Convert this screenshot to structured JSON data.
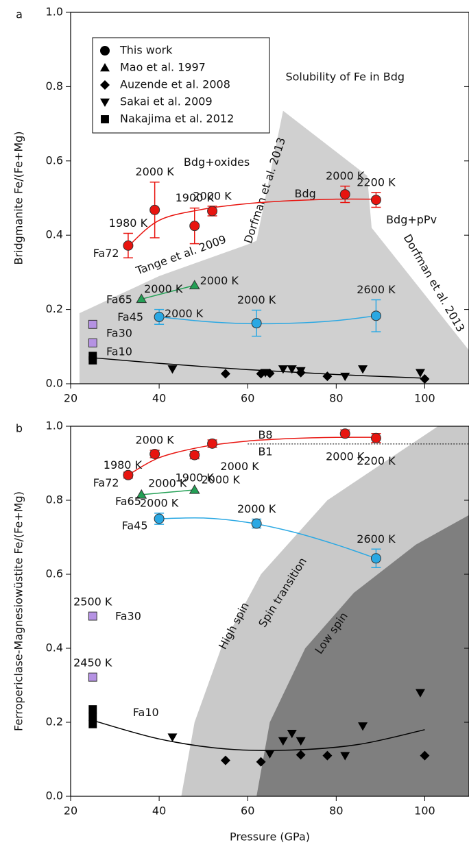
{
  "chart_data": [
    {
      "type": "scatter",
      "panel_label": "a",
      "ylabel": "Bridgmanite Fe/(Fe+Mg)",
      "xlim": [
        20,
        110
      ],
      "ylim": [
        0,
        1
      ],
      "xticks": [
        20,
        40,
        60,
        80,
        100
      ],
      "yticks": [
        {
          "value": 0,
          "label": "0.0"
        },
        0.2,
        0.4,
        0.6,
        0.8,
        {
          "value": 1,
          "label": "1.0"
        }
      ],
      "legend": [
        {
          "name": "This work",
          "marker": "circle"
        },
        {
          "name": "Mao et al. 1997",
          "marker": "triangle"
        },
        {
          "name": "Auzende et al. 2008",
          "marker": "diamond"
        },
        {
          "name": "Sakai et al. 2009",
          "marker": "triangle-down"
        },
        {
          "name": "Nakajima et al. 2012",
          "marker": "square"
        }
      ],
      "regions": [
        {
          "color": "#d0d0d0",
          "x": [
            22,
            22,
            40,
            60,
            62,
            68,
            87,
            88,
            110,
            110
          ],
          "y": [
            0,
            0.19,
            0.29,
            0.375,
            0.385,
            0.735,
            0.56,
            0.42,
            0.09,
            0
          ]
        }
      ],
      "annotations": [
        "Solubility of Fe in Bdg",
        "Bdg+oxides",
        "Bdg",
        "Bdg+pPv",
        "Tange et al. 2009",
        "Dorfman et al. 2013",
        "Dorfman et al. 2013"
      ],
      "series": [
        {
          "name": "Fa72",
          "color": "#e8140f",
          "marker": "circle",
          "x": [
            33,
            39,
            48,
            52,
            82,
            89
          ],
          "values": [
            0.372,
            0.468,
            0.425,
            0.465,
            0.51,
            0.495
          ],
          "errors": [
            0.033,
            0.075,
            0.048,
            0.013,
            0.022,
            0.02
          ],
          "point_labels": [
            "1980 K",
            "2000 K",
            "1900 K",
            "2000 K",
            "2000 K",
            "2200 K"
          ],
          "fit_x": [
            33,
            40,
            50,
            60,
            70,
            80,
            89
          ],
          "fit_y": [
            0.37,
            0.44,
            0.47,
            0.485,
            0.493,
            0.497,
            0.497
          ]
        },
        {
          "name": "Fa65",
          "color": "#23a055",
          "marker": "triangle",
          "x": [
            36,
            48
          ],
          "values": [
            0.228,
            0.265
          ],
          "point_labels": [
            "2000 K",
            "2000 K"
          ],
          "fit_x": [
            36,
            48
          ],
          "fit_y": [
            0.228,
            0.265
          ]
        },
        {
          "name": "Fa45",
          "color": "#2aa8e3",
          "marker": "circle",
          "x": [
            40,
            62,
            89
          ],
          "values": [
            0.18,
            0.163,
            0.183
          ],
          "errors": [
            0.02,
            0.035,
            0.043
          ],
          "point_labels": [
            "2000 K",
            "2000 K",
            "2600 K"
          ],
          "fit_x": [
            40,
            50,
            60,
            70,
            80,
            89
          ],
          "fit_y": [
            0.18,
            0.168,
            0.162,
            0.163,
            0.17,
            0.183
          ]
        },
        {
          "name": "Fa30",
          "color": "#b592e3",
          "marker": "square",
          "x": [
            25,
            25
          ],
          "values": [
            0.16,
            0.11
          ]
        },
        {
          "name": "Fa10",
          "color": "#000000",
          "marker": "square",
          "x": [
            25,
            25
          ],
          "values": [
            0.075,
            0.063
          ],
          "fit_x": [
            25,
            40,
            60,
            80,
            100
          ],
          "fit_y": [
            0.07,
            0.055,
            0.038,
            0.025,
            0.015
          ]
        },
        {
          "color": "#000000",
          "marker": "triangle-down",
          "x": [
            43,
            64,
            68,
            70,
            72,
            82,
            86,
            99
          ],
          "values": [
            0.04,
            0.03,
            0.04,
            0.04,
            0.035,
            0.02,
            0.04,
            0.03
          ]
        },
        {
          "color": "#000000",
          "marker": "diamond",
          "x": [
            55,
            63,
            65,
            72,
            78,
            100
          ],
          "values": [
            0.027,
            0.027,
            0.028,
            0.03,
            0.02,
            0.013
          ]
        }
      ]
    },
    {
      "type": "scatter",
      "panel_label": "b",
      "ylabel": "Ferropericlase-Magnesiowüstite Fe/(Fe+Mg)",
      "xlabel": "Pressure (GPa)",
      "xlim": [
        20,
        110
      ],
      "ylim": [
        0,
        1
      ],
      "xticks": [
        20,
        40,
        60,
        80,
        100
      ],
      "yticks": [
        {
          "value": 0,
          "label": "0.0"
        },
        0.2,
        0.4,
        0.6,
        0.8,
        {
          "value": 1,
          "label": "1.0"
        }
      ],
      "regions": [
        {
          "color": "#c9c9c9",
          "x": [
            45,
            48,
            54,
            63,
            78,
            103,
            110,
            110
          ],
          "y": [
            0,
            0.2,
            0.4,
            0.6,
            0.8,
            1,
            1,
            0
          ]
        },
        {
          "color": "#7f7f7f",
          "x": [
            62,
            65,
            73,
            84,
            98,
            110,
            110
          ],
          "y": [
            0,
            0.2,
            0.4,
            0.55,
            0.68,
            0.76,
            0
          ]
        }
      ],
      "phase_boundary": {
        "x": [
          60,
          110
        ],
        "y": [
          0.952,
          0.952
        ]
      },
      "annotations": [
        "B8",
        "B1",
        "High spin",
        "Spin transition",
        "Low spin"
      ],
      "series": [
        {
          "name": "Fa72",
          "color": "#e8140f",
          "marker": "circle",
          "x": [
            33,
            39,
            48,
            52,
            82,
            89
          ],
          "values": [
            0.868,
            0.925,
            0.922,
            0.953,
            0.98,
            0.968
          ],
          "errors": [
            0.008,
            0.01,
            0.01,
            0.01,
            0.01,
            0.012
          ],
          "point_labels": [
            "1980 K",
            "2000 K",
            "1900 K",
            "2000 K",
            "2000 K",
            "2200 K"
          ],
          "fit_x": [
            33,
            40,
            50,
            60,
            70,
            80,
            89
          ],
          "fit_y": [
            0.868,
            0.915,
            0.945,
            0.96,
            0.967,
            0.97,
            0.97
          ]
        },
        {
          "name": "Fa65",
          "color": "#23a055",
          "marker": "triangle",
          "x": [
            36,
            48
          ],
          "values": [
            0.815,
            0.828
          ],
          "point_labels": [
            "2000 K",
            "2000 K"
          ],
          "fit_x": [
            36,
            48
          ],
          "fit_y": [
            0.815,
            0.828
          ]
        },
        {
          "name": "Fa45",
          "color": "#2aa8e3",
          "marker": "circle",
          "x": [
            40,
            62,
            89
          ],
          "values": [
            0.75,
            0.737,
            0.643
          ],
          "errors": [
            0.015,
            0.012,
            0.025
          ],
          "point_labels": [
            "2000 K",
            "2000 K",
            "2600 K"
          ],
          "fit_x": [
            40,
            50,
            60,
            70,
            80,
            89
          ],
          "fit_y": [
            0.75,
            0.752,
            0.74,
            0.715,
            0.68,
            0.643
          ]
        },
        {
          "name": "Fa30",
          "color": "#b592e3",
          "marker": "square",
          "x": [
            25,
            25
          ],
          "values": [
            0.487,
            0.322
          ],
          "point_labels": [
            "2500 K",
            "2450 K"
          ]
        },
        {
          "name": "Fa10",
          "color": "#000000",
          "marker": "square",
          "x": [
            25,
            25,
            25
          ],
          "values": [
            0.235,
            0.215,
            0.195
          ],
          "fit_x": [
            25,
            40,
            55,
            70,
            85,
            100
          ],
          "fit_y": [
            0.205,
            0.155,
            0.128,
            0.125,
            0.14,
            0.18
          ]
        },
        {
          "color": "#000000",
          "marker": "triangle-down",
          "x": [
            43,
            65,
            68,
            70,
            72,
            82,
            86,
            99
          ],
          "values": [
            0.16,
            0.115,
            0.15,
            0.17,
            0.15,
            0.11,
            0.19,
            0.28
          ]
        },
        {
          "color": "#000000",
          "marker": "diamond",
          "x": [
            55,
            63,
            72,
            78,
            100
          ],
          "values": [
            0.097,
            0.093,
            0.112,
            0.11,
            0.11
          ]
        }
      ]
    }
  ]
}
